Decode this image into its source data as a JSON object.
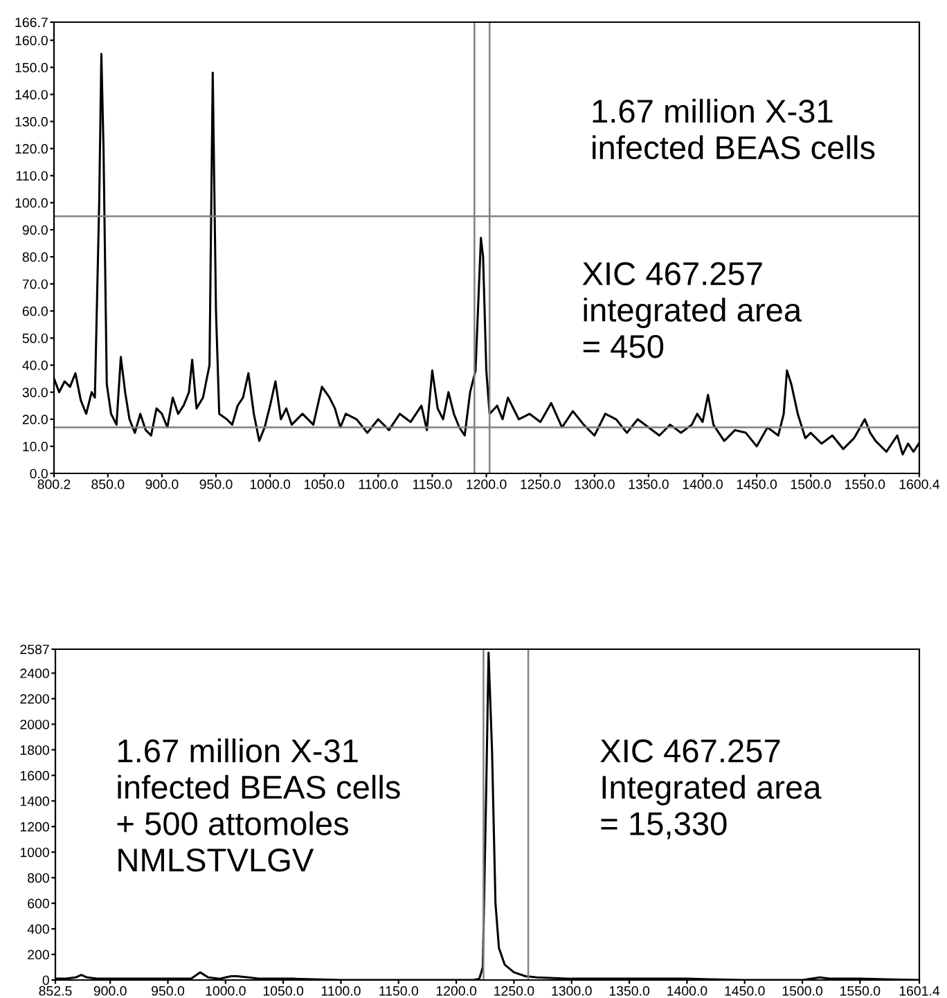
{
  "chart_data": [
    {
      "type": "line",
      "xlim": [
        800.2,
        1600.4
      ],
      "ylim": [
        0,
        166.7
      ],
      "xticks": [
        800.2,
        {
          "value": 850,
          "label": "850.0"
        },
        {
          "value": 900,
          "label": "900.0"
        },
        {
          "value": 950,
          "label": "950.0"
        },
        {
          "value": 1000,
          "label": "1000.0"
        },
        {
          "value": 1050,
          "label": "1050.0"
        },
        {
          "value": 1100,
          "label": "1100.0"
        },
        {
          "value": 1150,
          "label": "1150.0"
        },
        {
          "value": 1200,
          "label": "1200.0"
        },
        {
          "value": 1250,
          "label": "1250.0"
        },
        {
          "value": 1300,
          "label": "1300.0"
        },
        {
          "value": 1350,
          "label": "1350.0"
        },
        {
          "value": 1400,
          "label": "1400.0"
        },
        {
          "value": 1450,
          "label": "1450.0"
        },
        {
          "value": 1500,
          "label": "1500.0"
        },
        {
          "value": 1550,
          "label": "1550.0"
        },
        1600.4
      ],
      "yticks": [
        {
          "value": 0,
          "label": "0.0"
        },
        {
          "value": 10,
          "label": "10.0"
        },
        {
          "value": 20,
          "label": "20.0"
        },
        {
          "value": 30,
          "label": "30.0"
        },
        {
          "value": 40,
          "label": "40.0"
        },
        {
          "value": 50,
          "label": "50.0"
        },
        {
          "value": 60,
          "label": "60.0"
        },
        {
          "value": 70,
          "label": "70.0"
        },
        {
          "value": 80,
          "label": "80.0"
        },
        {
          "value": 90,
          "label": "90.0"
        },
        {
          "value": 100,
          "label": "100.0"
        },
        {
          "value": 110,
          "label": "110.0"
        },
        {
          "value": 120,
          "label": "120.0"
        },
        {
          "value": 130,
          "label": "130.0"
        },
        {
          "value": 140,
          "label": "140.0"
        },
        {
          "value": 150,
          "label": "150.0"
        },
        {
          "value": 160,
          "label": "160.0"
        },
        166.7
      ],
      "series": [
        {
          "color": "#000000",
          "x": [
            800.2,
            805,
            810,
            815,
            820,
            825,
            830,
            835,
            838,
            842,
            844,
            846,
            849,
            853,
            858,
            862,
            866,
            870,
            875,
            880,
            885,
            890,
            895,
            900,
            905,
            910,
            915,
            920,
            925,
            928,
            932,
            938,
            944,
            947,
            950,
            953,
            960,
            965,
            970,
            975,
            980,
            985,
            990,
            995,
            1000,
            1005,
            1010,
            1015,
            1020,
            1030,
            1040,
            1048,
            1055,
            1060,
            1065,
            1070,
            1080,
            1090,
            1100,
            1110,
            1120,
            1130,
            1140,
            1145,
            1150,
            1155,
            1160,
            1165,
            1170,
            1175,
            1180,
            1185,
            1190,
            1195,
            1197,
            1200,
            1203,
            1210,
            1215,
            1220,
            1230,
            1240,
            1250,
            1260,
            1270,
            1280,
            1290,
            1300,
            1310,
            1320,
            1330,
            1340,
            1350,
            1360,
            1370,
            1380,
            1390,
            1395,
            1400,
            1405,
            1410,
            1420,
            1430,
            1440,
            1450,
            1460,
            1470,
            1475,
            1478,
            1482,
            1488,
            1495,
            1500,
            1510,
            1520,
            1530,
            1540,
            1550,
            1555,
            1560,
            1570,
            1580,
            1585,
            1590,
            1595,
            1600
          ],
          "values": [
            35,
            30,
            34,
            32,
            37,
            27,
            22,
            30,
            28,
            100,
            155,
            120,
            33,
            22,
            18,
            43,
            30,
            20,
            15,
            22,
            16,
            14,
            24,
            22,
            17,
            28,
            22,
            25,
            30,
            42,
            24,
            28,
            40,
            148,
            60,
            22,
            20,
            18,
            25,
            28,
            37,
            22,
            12,
            17,
            25,
            34,
            20,
            24,
            18,
            22,
            18,
            32,
            28,
            24,
            17,
            22,
            20,
            15,
            20,
            16,
            22,
            19,
            25,
            16,
            38,
            24,
            20,
            30,
            22,
            17,
            14,
            30,
            38,
            87,
            80,
            38,
            22,
            25,
            20,
            28,
            20,
            22,
            19,
            26,
            17,
            23,
            18,
            14,
            22,
            20,
            15,
            20,
            17,
            14,
            18,
            15,
            18,
            22,
            19,
            29,
            18,
            12,
            16,
            15,
            10,
            17,
            14,
            22,
            38,
            33,
            22,
            13,
            15,
            11,
            14,
            9,
            13,
            20,
            15,
            12,
            8,
            14,
            7,
            11,
            8,
            11
          ]
        }
      ],
      "ref_lines": [
        {
          "axis": "x",
          "value": 1189,
          "color": "#808080"
        },
        {
          "axis": "x",
          "value": 1203,
          "color": "#808080"
        },
        {
          "axis": "y",
          "value": 95,
          "color": "#808080"
        },
        {
          "axis": "y",
          "value": 17,
          "color": "#808080"
        }
      ],
      "annotations": [
        "1.67 million X-31\ninfected BEAS cells",
        "XIC 467.257\nintegrated area\n= 450"
      ],
      "grid": false
    },
    {
      "type": "line",
      "xlim": [
        852.5,
        1601.4
      ],
      "ylim": [
        0,
        2587
      ],
      "xticks": [
        852.5,
        {
          "value": 900,
          "label": "900.0"
        },
        {
          "value": 950,
          "label": "950.0"
        },
        {
          "value": 1000,
          "label": "1000.0"
        },
        {
          "value": 1050,
          "label": "1050.0"
        },
        {
          "value": 1100,
          "label": "1100.0"
        },
        {
          "value": 1150,
          "label": "1150.0"
        },
        {
          "value": 1200,
          "label": "1200.0"
        },
        {
          "value": 1250,
          "label": "1250.0"
        },
        {
          "value": 1300,
          "label": "1300.0"
        },
        {
          "value": 1350,
          "label": "1350.0"
        },
        {
          "value": 1400,
          "label": "1400.0"
        },
        {
          "value": 1450,
          "label": "1450.0"
        },
        {
          "value": 1500,
          "label": "1500.0"
        },
        {
          "value": 1550,
          "label": "1550.0"
        },
        1601.4
      ],
      "yticks": [
        0,
        200,
        400,
        600,
        800,
        1000,
        1200,
        1400,
        1600,
        1800,
        2000,
        2200,
        2400,
        2587
      ],
      "series": [
        {
          "color": "#000000",
          "x": [
            852.5,
            860,
            870,
            875,
            880,
            890,
            900,
            920,
            950,
            970,
            978,
            985,
            995,
            1000,
            1005,
            1010,
            1020,
            1030,
            1040,
            1060,
            1100,
            1150,
            1200,
            1215,
            1220,
            1223,
            1226,
            1228,
            1231,
            1234,
            1237,
            1242,
            1250,
            1260,
            1270,
            1300,
            1350,
            1400,
            1450,
            1500,
            1515,
            1525,
            1550,
            1600
          ],
          "values": [
            10,
            10,
            20,
            40,
            20,
            10,
            10,
            10,
            10,
            10,
            60,
            20,
            10,
            20,
            30,
            30,
            20,
            10,
            10,
            10,
            0,
            0,
            0,
            0,
            10,
            100,
            1500,
            2560,
            1800,
            600,
            250,
            120,
            60,
            30,
            20,
            10,
            10,
            10,
            0,
            0,
            20,
            10,
            10,
            0
          ]
        }
      ],
      "ref_lines": [
        {
          "axis": "x",
          "value": 1223.6,
          "color": "#808080"
        },
        {
          "axis": "x",
          "value": 1262.4,
          "color": "#808080"
        }
      ],
      "annotations": [
        "1.67 million X-31\ninfected BEAS cells\n+ 500 attomoles\nNMLSTVLGV",
        "XIC 467.257\nIntegrated area\n= 15,330"
      ],
      "grid": false
    }
  ]
}
